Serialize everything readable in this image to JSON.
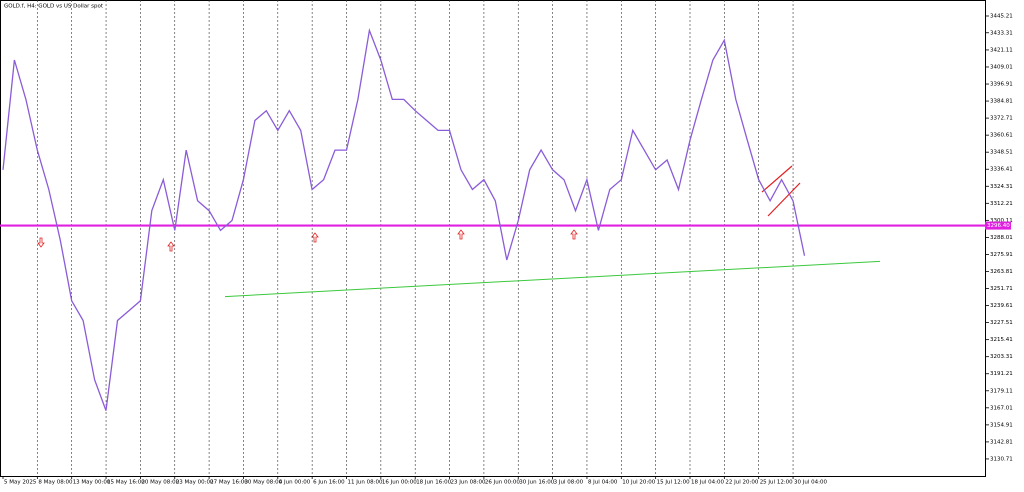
{
  "chart_data": {
    "type": "line",
    "title": "GOLD.f, H4:  GOLD vs US Dollar spot",
    "categories": [
      "5 May 2025",
      null,
      null,
      "8 May 08:00",
      null,
      null,
      "13 May 00:00",
      null,
      null,
      "15 May 16:00",
      null,
      null,
      "20 May 08:00",
      null,
      null,
      "23 May 00:00",
      null,
      null,
      "27 May 16:00",
      null,
      null,
      "30 May 08:00",
      null,
      null,
      "4 Jun 00:00",
      null,
      null,
      "6 Jun 16:00",
      null,
      null,
      "11 Jun 08:00",
      null,
      null,
      "16 Jun 00:00",
      null,
      null,
      "18 Jun 16:00",
      null,
      null,
      "23 Jun 08:00",
      null,
      null,
      "26 Jun 00:00",
      null,
      null,
      "30 Jun 16:00",
      null,
      null,
      "3 Jul 08:00",
      null,
      null,
      "8 Jul 04:00",
      null,
      null,
      "10 Jul 20:00",
      null,
      null,
      "15 Jul 12:00",
      null,
      null,
      "18 Jul 04:00",
      null,
      null,
      "22 Jul 20:00",
      null,
      null,
      "25 Jul 12:00",
      null,
      null,
      "30 Jul 04:00",
      null
    ],
    "series": [
      {
        "name": "GOLD.f",
        "color": "#8a5cd8",
        "values": [
          3336,
          3414,
          3386,
          3350,
          3322,
          3286,
          3243,
          3229,
          3187,
          3165,
          3229,
          3236,
          3243,
          3307,
          3329,
          3293,
          3350,
          3314,
          3307,
          3293,
          3300,
          3329,
          3371,
          3378,
          3364,
          3378,
          3364,
          3322,
          3329,
          3350,
          3350,
          3386,
          3435,
          3414,
          3386,
          3386,
          3378,
          3371,
          3364,
          3364,
          3336,
          3322,
          3329,
          3314,
          3272,
          3300,
          3336,
          3350,
          3336,
          3329,
          3307,
          3329,
          3293,
          3322,
          3329,
          3364,
          3350,
          3336,
          3343,
          3322,
          3357,
          3386,
          3414,
          3428,
          3386,
          3357,
          3329,
          3314,
          3329,
          3314,
          3275
        ]
      }
    ],
    "ylim": [
      3118.6,
      3456.57
    ],
    "yticks": [
      3445.21,
      3433.31,
      3421.11,
      3409.01,
      3396.91,
      3384.81,
      3372.71,
      3360.61,
      3348.51,
      3336.41,
      3324.31,
      3312.21,
      3300.11,
      3288.01,
      3275.91,
      3263.81,
      3251.71,
      3239.61,
      3227.51,
      3215.41,
      3203.31,
      3191.21,
      3179.11,
      3167.01,
      3154.91,
      3142.81,
      3130.71
    ],
    "level": {
      "value": 3296.4,
      "label": "3296.40",
      "color": "#e020e0"
    },
    "trendline": {
      "values": [
        3246,
        3271
      ],
      "color": "#3cc83c"
    },
    "grid": true
  }
}
